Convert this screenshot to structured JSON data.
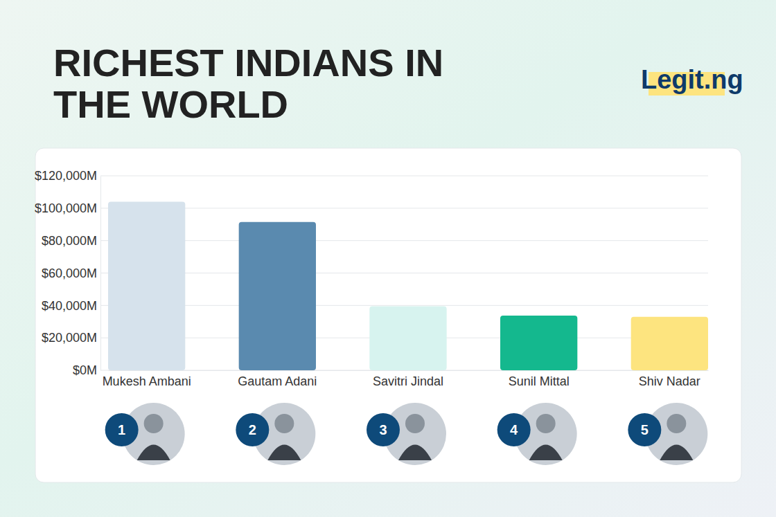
{
  "chart_data": {
    "type": "bar",
    "title": "RICHEST INDIANS IN THE WORLD",
    "logo": "Legit.ng",
    "categories": [
      "Mukesh Ambani",
      "Gautam Adani",
      "Savitri Jindal",
      "Sunil Mittal",
      "Shiv Nadar"
    ],
    "values": [
      104000,
      91500,
      39500,
      33700,
      33000
    ],
    "ranks": [
      1,
      2,
      3,
      4,
      5
    ],
    "colors": [
      "#d6e2ec",
      "#5a8aaf",
      "#d7f3ef",
      "#14b88e",
      "#fde47f"
    ],
    "ylim": [
      0,
      120000
    ],
    "yticks": [
      {
        "value": 0,
        "label": "$0M"
      },
      {
        "value": 20000,
        "label": "$20,000M"
      },
      {
        "value": 40000,
        "label": "$40,000M"
      },
      {
        "value": 60000,
        "label": "$60,000M"
      },
      {
        "value": 80000,
        "label": "$80,000M"
      },
      {
        "value": 100000,
        "label": "$100,000M"
      },
      {
        "value": 120000,
        "label": "$120,000M"
      }
    ],
    "grid": true
  }
}
